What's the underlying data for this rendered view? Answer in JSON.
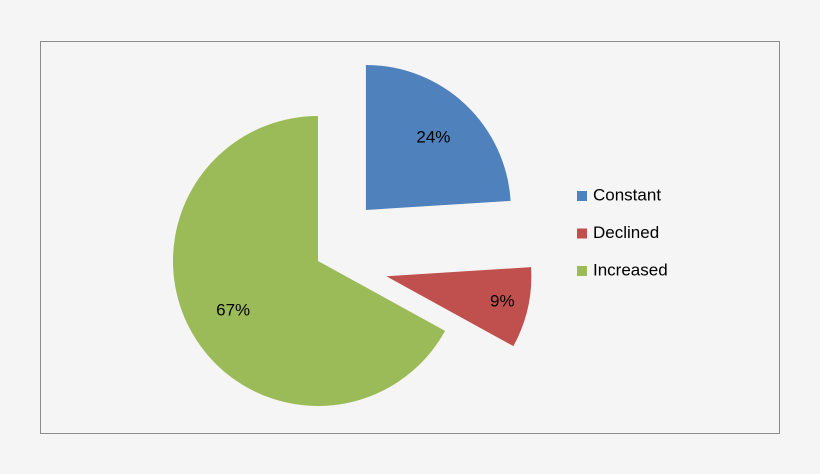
{
  "chart_data": {
    "type": "pie",
    "categories": [
      "Constant",
      "Declined",
      "Increased"
    ],
    "values": [
      24,
      9,
      67
    ],
    "value_labels": [
      "24%",
      "9%",
      "67%"
    ],
    "colors": [
      "#4f81bd",
      "#c0504d",
      "#9bbb59"
    ],
    "legend": "right"
  }
}
